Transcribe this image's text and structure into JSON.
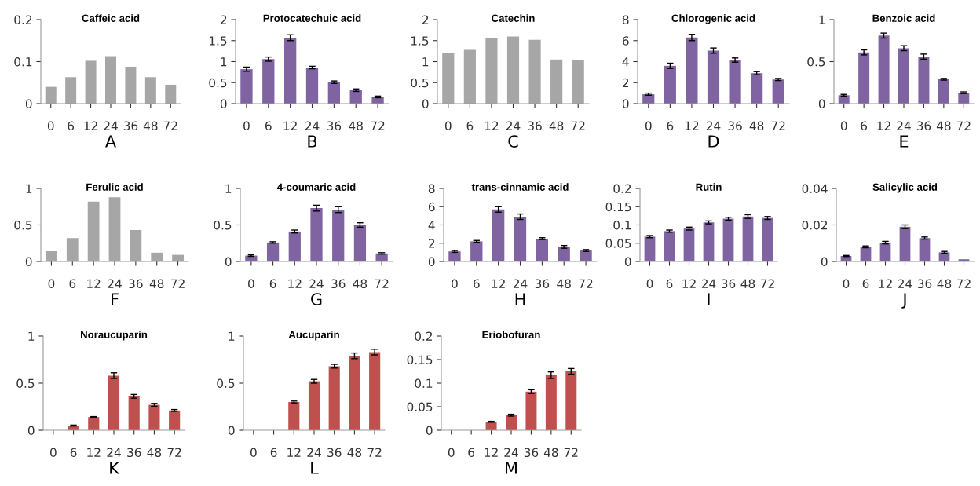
{
  "chart_data": [
    {
      "type": "bar",
      "title": "Caffeic acid",
      "xlabel": "A",
      "categories": [
        "0",
        "6",
        "12",
        "24",
        "36",
        "48",
        "72"
      ],
      "values": [
        0.04,
        0.063,
        0.102,
        0.113,
        0.088,
        0.063,
        0.045
      ],
      "color": "#a6a6a6",
      "ylim": [
        0,
        0.2
      ],
      "yticks": [
        0,
        0.1,
        0.2
      ],
      "grid": false,
      "legend": false
    },
    {
      "type": "bar",
      "title": "Protocatechuic acid",
      "xlabel": "B",
      "categories": [
        "0",
        "6",
        "12",
        "24",
        "36",
        "48",
        "72"
      ],
      "values": [
        0.82,
        1.06,
        1.57,
        0.86,
        0.51,
        0.32,
        0.16
      ],
      "errors": [
        0.05,
        0.05,
        0.07,
        0.03,
        0.03,
        0.03,
        0.02
      ],
      "color": "#8064a2",
      "ylim": [
        0,
        2
      ],
      "yticks": [
        0,
        0.5,
        1,
        1.5,
        2
      ],
      "grid": false,
      "legend": false
    },
    {
      "type": "bar",
      "title": "Catechin",
      "xlabel": "C",
      "categories": [
        "0",
        "6",
        "12",
        "24",
        "36",
        "48",
        "72"
      ],
      "values": [
        1.2,
        1.28,
        1.55,
        1.6,
        1.52,
        1.05,
        1.03
      ],
      "color": "#a6a6a6",
      "ylim": [
        0,
        2
      ],
      "yticks": [
        0,
        0.5,
        1,
        1.5,
        2
      ],
      "grid": false,
      "legend": false
    },
    {
      "type": "bar",
      "title": "Chlorogenic acid",
      "xlabel": "D",
      "categories": [
        "0",
        "6",
        "12",
        "24",
        "36",
        "48",
        "72"
      ],
      "values": [
        0.9,
        3.6,
        6.3,
        5.05,
        4.15,
        2.9,
        2.3
      ],
      "errors": [
        0.1,
        0.25,
        0.3,
        0.25,
        0.2,
        0.15,
        0.1
      ],
      "color": "#8064a2",
      "ylim": [
        0,
        8
      ],
      "yticks": [
        0,
        2,
        4,
        6,
        8
      ],
      "grid": false,
      "legend": false
    },
    {
      "type": "bar",
      "title": "Benzoic acid",
      "xlabel": "E",
      "categories": [
        "0",
        "6",
        "12",
        "24",
        "36",
        "48",
        "72"
      ],
      "values": [
        0.1,
        0.61,
        0.81,
        0.66,
        0.56,
        0.29,
        0.13
      ],
      "errors": [
        0.01,
        0.03,
        0.03,
        0.03,
        0.03,
        0.01,
        0.01
      ],
      "color": "#8064a2",
      "ylim": [
        0,
        1
      ],
      "yticks": [
        0,
        0.5,
        1
      ],
      "grid": false,
      "legend": false
    },
    {
      "type": "bar",
      "title": "Ferulic acid",
      "xlabel": "F",
      "categories": [
        "0",
        "6",
        "12",
        "24",
        "36",
        "48",
        "72"
      ],
      "values": [
        0.14,
        0.32,
        0.82,
        0.88,
        0.43,
        0.12,
        0.09
      ],
      "color": "#a6a6a6",
      "ylim": [
        0,
        1
      ],
      "yticks": [
        0,
        0.5,
        1
      ],
      "grid": false,
      "legend": false
    },
    {
      "type": "bar",
      "title": "4-coumaric acid",
      "xlabel": "G",
      "categories": [
        "0",
        "6",
        "12",
        "24",
        "36",
        "48",
        "72"
      ],
      "values": [
        0.08,
        0.26,
        0.41,
        0.73,
        0.71,
        0.5,
        0.11
      ],
      "errors": [
        0.01,
        0.01,
        0.02,
        0.04,
        0.04,
        0.03,
        0.01
      ],
      "color": "#8064a2",
      "ylim": [
        0,
        1
      ],
      "yticks": [
        0,
        0.5,
        1
      ],
      "grid": false,
      "legend": false
    },
    {
      "type": "bar",
      "title": "trans-cinnamic acid",
      "xlabel": "H",
      "categories": [
        "0",
        "6",
        "12",
        "24",
        "36",
        "48",
        "72"
      ],
      "values": [
        1.1,
        2.2,
        5.7,
        4.9,
        2.5,
        1.6,
        1.2
      ],
      "errors": [
        0.1,
        0.1,
        0.3,
        0.3,
        0.1,
        0.15,
        0.1
      ],
      "color": "#8064a2",
      "ylim": [
        0,
        8
      ],
      "yticks": [
        0,
        2,
        4,
        6,
        8
      ],
      "grid": false,
      "legend": false
    },
    {
      "type": "bar",
      "title": "Rutin",
      "xlabel": "I",
      "categories": [
        "0",
        "6",
        "12",
        "24",
        "36",
        "48",
        "72"
      ],
      "values": [
        0.068,
        0.083,
        0.09,
        0.107,
        0.117,
        0.123,
        0.119
      ],
      "errors": [
        0.003,
        0.003,
        0.004,
        0.004,
        0.004,
        0.005,
        0.004
      ],
      "color": "#8064a2",
      "ylim": [
        0,
        0.2
      ],
      "yticks": [
        0,
        0.05,
        0.1,
        0.15,
        0.2
      ],
      "grid": false,
      "legend": false
    },
    {
      "type": "bar",
      "title": "Salicylic acid",
      "xlabel": "J",
      "categories": [
        "0",
        "6",
        "12",
        "24",
        "36",
        "48",
        "72"
      ],
      "values": [
        0.003,
        0.008,
        0.0103,
        0.019,
        0.0128,
        0.005,
        0.0012
      ],
      "errors": [
        0.0003,
        0.0005,
        0.0007,
        0.001,
        0.0006,
        0.0005,
        null
      ],
      "color": "#8064a2",
      "ylim": [
        0,
        0.04
      ],
      "yticks": [
        0,
        0.02,
        0.04
      ],
      "grid": false,
      "legend": false
    },
    {
      "type": "bar",
      "title": "Noraucuparin",
      "xlabel": "K",
      "categories": [
        "0",
        "6",
        "12",
        "24",
        "36",
        "48",
        "72"
      ],
      "values": [
        0,
        0.05,
        0.14,
        0.58,
        0.36,
        0.27,
        0.21
      ],
      "errors": [
        null,
        0.005,
        0.005,
        0.03,
        0.02,
        0.015,
        0.01
      ],
      "color": "#c0504d",
      "ylim": [
        0,
        1
      ],
      "yticks": [
        0,
        0.5,
        1
      ],
      "grid": false,
      "legend": false
    },
    {
      "type": "bar",
      "title": "Aucuparin",
      "xlabel": "L",
      "categories": [
        "0",
        "6",
        "12",
        "24",
        "36",
        "48",
        "72"
      ],
      "values": [
        0,
        0,
        0.3,
        0.52,
        0.68,
        0.79,
        0.83
      ],
      "errors": [
        null,
        null,
        0.01,
        0.02,
        0.02,
        0.03,
        0.03
      ],
      "color": "#c0504d",
      "ylim": [
        0,
        1
      ],
      "yticks": [
        0,
        0.5,
        1
      ],
      "grid": false,
      "legend": false
    },
    {
      "type": "bar",
      "title": "Eriobofuran",
      "xlabel": "M",
      "categories": [
        "0",
        "6",
        "12",
        "24",
        "36",
        "48",
        "72"
      ],
      "values": [
        0,
        0,
        0.018,
        0.032,
        0.082,
        0.117,
        0.125
      ],
      "errors": [
        null,
        null,
        0.001,
        0.002,
        0.004,
        0.007,
        0.006
      ],
      "color": "#c0504d",
      "ylim": [
        0,
        0.2
      ],
      "yticks": [
        0,
        0.05,
        0.1,
        0.15,
        0.2
      ],
      "grid": false,
      "legend": false
    }
  ]
}
